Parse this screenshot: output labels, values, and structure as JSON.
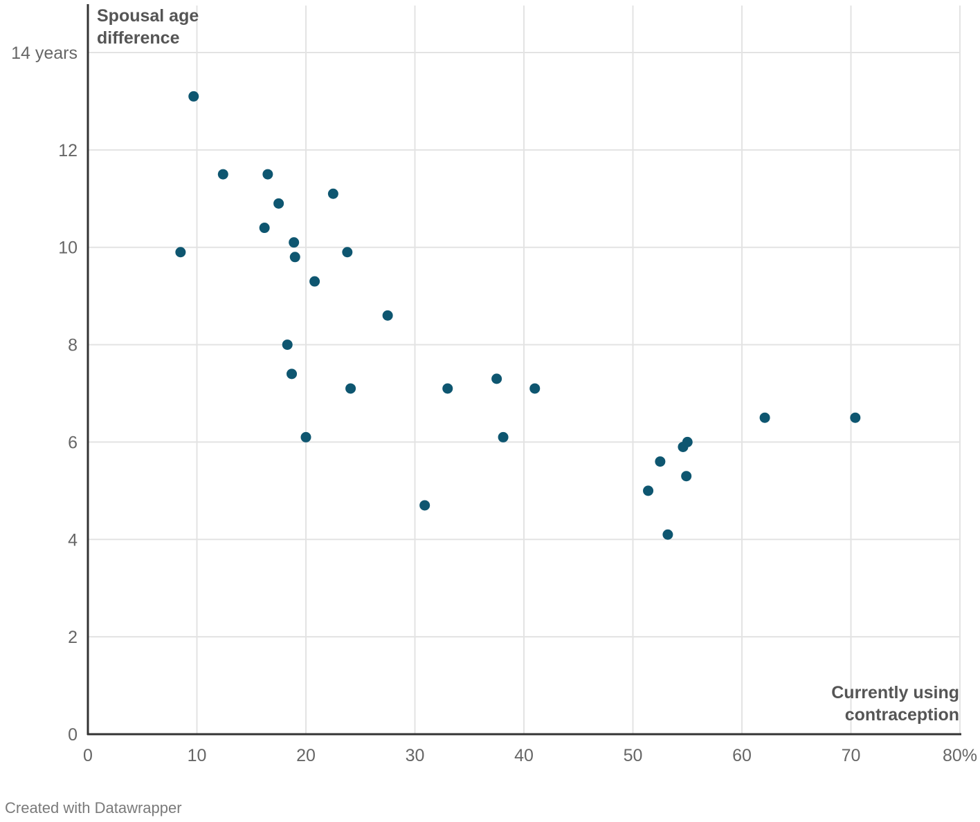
{
  "chart_data": {
    "type": "scatter",
    "title": "",
    "ylabel_lines": [
      "Spousal age",
      "difference"
    ],
    "xlabel_lines": [
      "Currently using",
      "contraception"
    ],
    "xlim": [
      0,
      80
    ],
    "ylim": [
      0,
      14
    ],
    "x_ticks": [
      0,
      10,
      20,
      30,
      40,
      50,
      60,
      70,
      80
    ],
    "x_tick_labels": [
      "0",
      "10",
      "20",
      "30",
      "40",
      "50",
      "60",
      "70",
      "80%"
    ],
    "y_ticks": [
      0,
      2,
      4,
      6,
      8,
      10,
      12,
      14
    ],
    "y_tick_labels": [
      "0",
      "2",
      "4",
      "6",
      "8",
      "10",
      "12",
      "14 years"
    ],
    "grid": true,
    "point_color": "#0e5670",
    "points": [
      {
        "x": 9.7,
        "y": 13.1
      },
      {
        "x": 8.5,
        "y": 9.9
      },
      {
        "x": 12.4,
        "y": 11.5
      },
      {
        "x": 16.5,
        "y": 11.5
      },
      {
        "x": 17.5,
        "y": 10.9
      },
      {
        "x": 16.2,
        "y": 10.4
      },
      {
        "x": 18.9,
        "y": 10.1
      },
      {
        "x": 19.0,
        "y": 9.8
      },
      {
        "x": 22.5,
        "y": 11.1
      },
      {
        "x": 23.8,
        "y": 9.9
      },
      {
        "x": 20.8,
        "y": 9.3
      },
      {
        "x": 27.5,
        "y": 8.6
      },
      {
        "x": 18.3,
        "y": 8.0
      },
      {
        "x": 18.7,
        "y": 7.4
      },
      {
        "x": 24.1,
        "y": 7.1
      },
      {
        "x": 20.0,
        "y": 6.1
      },
      {
        "x": 33.0,
        "y": 7.1
      },
      {
        "x": 37.5,
        "y": 7.3
      },
      {
        "x": 41.0,
        "y": 7.1
      },
      {
        "x": 38.1,
        "y": 6.1
      },
      {
        "x": 30.9,
        "y": 4.7
      },
      {
        "x": 51.4,
        "y": 5.0
      },
      {
        "x": 52.5,
        "y": 5.6
      },
      {
        "x": 54.6,
        "y": 5.9
      },
      {
        "x": 55.0,
        "y": 6.0
      },
      {
        "x": 54.9,
        "y": 5.3
      },
      {
        "x": 53.2,
        "y": 4.1
      },
      {
        "x": 62.1,
        "y": 6.5
      },
      {
        "x": 70.4,
        "y": 6.5
      }
    ]
  },
  "footer": {
    "credit": "Created with Datawrapper"
  }
}
